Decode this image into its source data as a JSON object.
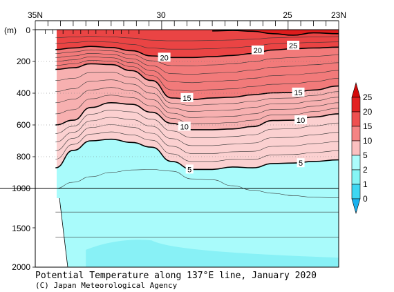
{
  "chart_data": {
    "type": "heatmap",
    "title": "Potential Temperature along 137°E line, January 2020",
    "credit": "(C) Japan Meteorological Agency",
    "x_axis": {
      "position": "top",
      "ticks": [
        "35N",
        "30",
        "25",
        "23N"
      ],
      "tick_values": [
        35,
        30,
        25,
        23
      ],
      "range": [
        35,
        23
      ]
    },
    "y_axis": {
      "unit_label": "(m)",
      "ticks": [
        "0",
        "200",
        "400",
        "600",
        "800",
        "1000",
        "1500",
        "2000"
      ],
      "tick_values": [
        0,
        200,
        400,
        600,
        800,
        1000,
        1500,
        2000
      ],
      "scale": "piecewise: 0-1000 m upper panel, 1000-2000 m compressed lower panel"
    },
    "colorbar": {
      "levels": [
        "0",
        "1",
        "2",
        "5",
        "10",
        "15",
        "20",
        "25"
      ],
      "colors": [
        "#1ab2f0",
        "#3ed7f2",
        "#86f5f5",
        "#acfcfc",
        "#fbc0c0",
        "#f58484",
        "#ee5050",
        "#e32222",
        "#d40a0a"
      ]
    },
    "contour_labels": [
      {
        "text": "25",
        "lat": 24.8,
        "depth": 100
      },
      {
        "text": "20",
        "lat": 29.9,
        "depth": 175
      },
      {
        "text": "20",
        "lat": 26.2,
        "depth": 130
      },
      {
        "text": "15",
        "lat": 29.0,
        "depth": 430
      },
      {
        "text": "15",
        "lat": 24.6,
        "depth": 395
      },
      {
        "text": "10",
        "lat": 29.1,
        "depth": 610
      },
      {
        "text": "10",
        "lat": 24.5,
        "depth": 570
      },
      {
        "text": "5",
        "lat": 28.9,
        "depth": 880
      },
      {
        "text": "5",
        "lat": 24.5,
        "depth": 840
      }
    ],
    "isotherm_depths_m": {
      "lat": [
        34.2,
        33.5,
        32.8,
        32.0,
        31.2,
        30.4,
        29.6,
        28.8,
        28.0,
        27.2,
        26.4,
        25.6,
        24.8,
        24.0,
        23.0
      ],
      "t25": [
        null,
        null,
        null,
        null,
        null,
        null,
        null,
        null,
        8,
        5,
        10,
        25,
        35,
        20,
        25
      ],
      "t20": [
        125,
        115,
        105,
        112,
        132,
        165,
        175,
        175,
        170,
        162,
        150,
        128,
        120,
        115,
        110
      ],
      "t15": [
        250,
        240,
        215,
        220,
        258,
        320,
        430,
        440,
        430,
        425,
        410,
        398,
        395,
        380,
        355
      ],
      "t10": [
        600,
        570,
        490,
        460,
        470,
        520,
        590,
        630,
        630,
        625,
        610,
        572,
        570,
        550,
        530
      ],
      "t5": [
        870,
        760,
        700,
        690,
        710,
        740,
        830,
        880,
        880,
        865,
        870,
        843,
        840,
        830,
        820
      ]
    }
  }
}
